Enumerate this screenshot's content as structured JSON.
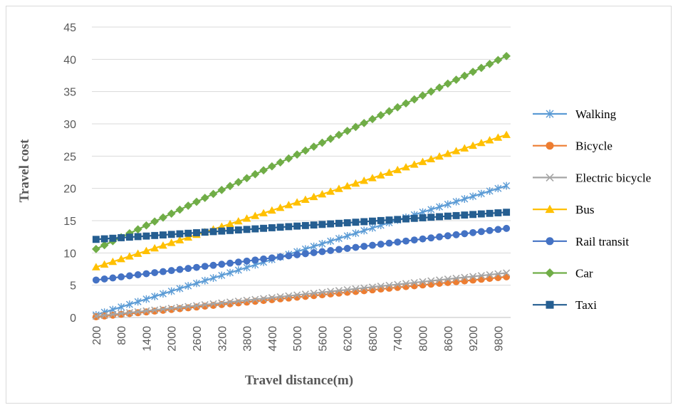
{
  "chart_data": {
    "type": "line",
    "title": "",
    "xlabel": "Travel distance(m)",
    "ylabel": "Travel cost",
    "ylim": [
      0,
      45
    ],
    "yticks": [
      0,
      5,
      10,
      15,
      20,
      25,
      30,
      35,
      40,
      45
    ],
    "x_start": 200,
    "x_step": 200,
    "x_count": 50,
    "xticks": [
      200,
      800,
      1400,
      2000,
      2600,
      3200,
      3800,
      4400,
      5000,
      5600,
      6200,
      6800,
      7400,
      8000,
      8600,
      9200,
      9800
    ],
    "grid": "horizontal",
    "legend_position": "right",
    "series": [
      {
        "name": "Walking",
        "color": "#5b9bd5",
        "marker": "asterisk",
        "start": 0.4,
        "end": 20.4
      },
      {
        "name": "Bicycle",
        "color": "#ed7d31",
        "marker": "circle",
        "start": 0.1,
        "end": 6.3
      },
      {
        "name": "Electric bicycle",
        "color": "#a5a5a5",
        "marker": "x",
        "start": 0.2,
        "end": 6.9
      },
      {
        "name": "Bus",
        "color": "#ffc000",
        "marker": "triangle",
        "start": 7.8,
        "end": 28.3
      },
      {
        "name": "Rail transit",
        "color": "#4472c4",
        "marker": "circle",
        "start": 5.8,
        "end": 13.8
      },
      {
        "name": "Car",
        "color": "#70ad47",
        "marker": "diamond",
        "start": 10.6,
        "end": 40.5
      },
      {
        "name": "Taxi",
        "color": "#255e91",
        "marker": "square",
        "start": 12.1,
        "end": 16.3
      }
    ]
  }
}
